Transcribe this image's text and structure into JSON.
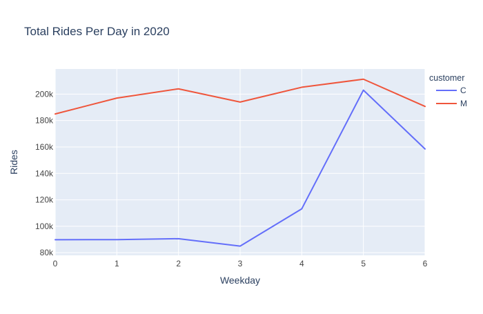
{
  "chart_data": {
    "type": "line",
    "title": "Total Rides Per Day in 2020",
    "xlabel": "Weekday",
    "ylabel": "Rides",
    "x": [
      0,
      1,
      2,
      3,
      4,
      5,
      6
    ],
    "xlim": [
      0,
      6
    ],
    "ylim": [
      78000,
      219000
    ],
    "x_ticks": [
      0,
      1,
      2,
      3,
      4,
      5,
      6
    ],
    "x_tick_labels": [
      "0",
      "1",
      "2",
      "3",
      "4",
      "5",
      "6"
    ],
    "y_ticks": [
      80000,
      100000,
      120000,
      140000,
      160000,
      180000,
      200000
    ],
    "y_tick_labels": [
      "80k",
      "100k",
      "120k",
      "140k",
      "160k",
      "180k",
      "200k"
    ],
    "grid": true,
    "legend": {
      "title": "customer",
      "placement": "right"
    },
    "series": [
      {
        "name": "C",
        "color": "#636efa",
        "values": [
          89800,
          89900,
          90600,
          85000,
          113200,
          203000,
          158500
        ]
      },
      {
        "name": "M",
        "color": "#ef553b",
        "values": [
          185000,
          197000,
          204000,
          194000,
          205200,
          211300,
          190700
        ]
      }
    ]
  },
  "colors": {
    "plot_background": "#e5ecf6",
    "grid": "#ffffff",
    "text": "#2a3f5f",
    "tick_text": "#444444"
  }
}
